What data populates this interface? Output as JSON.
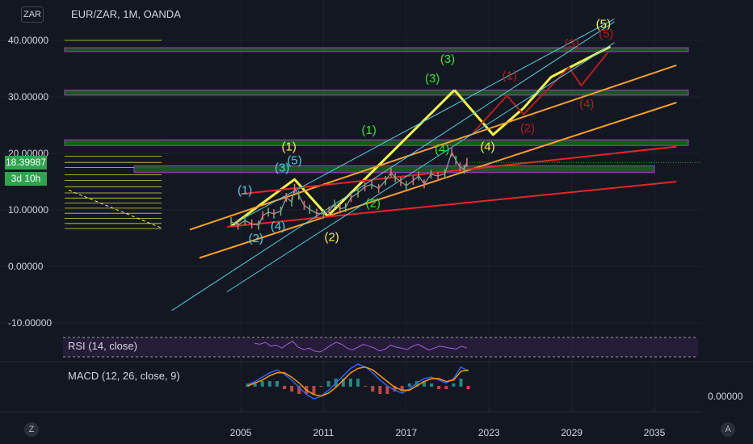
{
  "symbol": "EUR/ZAR, 1M, OANDA",
  "currency_button": "ZAR",
  "current_price": "18.39987",
  "countdown": "3d 10h",
  "rsi_label": "RSI (14, close)",
  "macd_label": "MACD (12, 26, close, 9)",
  "macd_axis_value": "0.00000",
  "corner_left": "Z",
  "corner_right": "A",
  "colors": {
    "background": "#131722",
    "yellow": "#f5f542",
    "orange": "#f59f2a",
    "red": "#e8242a",
    "cyan": "#4dd0e1",
    "green_label": "#2ee62e",
    "dark_red": "#b71c1c",
    "zone": "#1b5e20",
    "zone_border": "#b73fd8"
  },
  "chart_data": {
    "type": "line",
    "title": "EUR/ZAR, 1M, OANDA",
    "xlabel": "",
    "ylabel": "",
    "x_ticks": [
      "2005",
      "2011",
      "2017",
      "2023",
      "2029",
      "2035"
    ],
    "y_ticks": [
      "40.00000",
      "30.00000",
      "20.00000",
      "10.00000",
      "0.00000",
      "-10.00000"
    ],
    "xlim": [
      1999.5,
      2037
    ],
    "ylim": [
      -12,
      46
    ],
    "grid": true,
    "price": [
      [
        2004.3,
        7.9
      ],
      [
        2004.8,
        7.3
      ],
      [
        2005.3,
        8.1
      ],
      [
        2005.8,
        7.5
      ],
      [
        2006.3,
        7.3
      ],
      [
        2006.6,
        9.0
      ],
      [
        2007.0,
        9.6
      ],
      [
        2007.4,
        9.3
      ],
      [
        2007.9,
        9.8
      ],
      [
        2008.3,
        12.2
      ],
      [
        2008.7,
        11.4
      ],
      [
        2008.9,
        13.8
      ],
      [
        2009.2,
        12.6
      ],
      [
        2009.6,
        10.8
      ],
      [
        2010.0,
        10.1
      ],
      [
        2010.5,
        9.4
      ],
      [
        2011.0,
        9.3
      ],
      [
        2011.4,
        9.8
      ],
      [
        2011.8,
        11.0
      ],
      [
        2012.2,
        10.2
      ],
      [
        2012.6,
        10.4
      ],
      [
        2013.0,
        12.2
      ],
      [
        2013.5,
        13.0
      ],
      [
        2014.0,
        14.1
      ],
      [
        2014.5,
        14.5
      ],
      [
        2015.0,
        13.8
      ],
      [
        2015.5,
        15.2
      ],
      [
        2015.9,
        16.6
      ],
      [
        2016.2,
        15.7
      ],
      [
        2016.6,
        15.0
      ],
      [
        2017.0,
        14.3
      ],
      [
        2017.5,
        15.2
      ],
      [
        2017.9,
        16.0
      ],
      [
        2018.3,
        14.6
      ],
      [
        2018.8,
        16.3
      ],
      [
        2019.3,
        16.0
      ],
      [
        2019.8,
        16.4
      ],
      [
        2020.3,
        20.2
      ],
      [
        2020.6,
        18.8
      ],
      [
        2020.9,
        17.6
      ],
      [
        2021.2,
        17.2
      ],
      [
        2021.4,
        18.4
      ]
    ],
    "horizontal_levels": [
      {
        "name": "zone-38",
        "y": [
          38,
          38.7
        ]
      },
      {
        "name": "zone-31",
        "y": [
          30.3,
          31.2
        ]
      },
      {
        "name": "zone-22",
        "y": [
          21.4,
          22.4
        ]
      },
      {
        "name": "zone-17",
        "y": [
          16.6,
          17.8
        ]
      }
    ],
    "fib_levels": [
      40,
      31,
      22,
      19.5,
      18.4,
      17.5,
      16.2,
      15.2,
      14.1,
      13.0,
      12.1,
      11.2,
      10.3,
      9.4,
      8.5,
      7.6,
      6.7
    ],
    "trendlines": [
      {
        "name": "yellow-path-past",
        "color": "yellow",
        "points": [
          [
            2004.3,
            7.1
          ],
          [
            2008.9,
            15.4
          ],
          [
            2011.3,
            8.9
          ],
          [
            2020.5,
            31.2
          ]
        ]
      },
      {
        "name": "yellow-path-future",
        "color": "yellow",
        "points": [
          [
            2020.5,
            31.2
          ],
          [
            2023.3,
            23.3
          ],
          [
            2025.5,
            28.0
          ],
          [
            2027.5,
            33.5
          ],
          [
            2031.8,
            38.9
          ]
        ]
      },
      {
        "name": "darkred-projection",
        "color": "dark_red",
        "points": [
          [
            2021.8,
            23.5
          ],
          [
            2024.3,
            30.2
          ],
          [
            2025.5,
            26.9
          ],
          [
            2028.8,
            35.2
          ],
          [
            2029.7,
            32.0
          ],
          [
            2031.6,
            37.8
          ]
        ]
      },
      {
        "name": "orange-upper",
        "color": "orange",
        "points": [
          [
            2001.3,
            6.5
          ],
          [
            2036.6,
            35.6
          ]
        ]
      },
      {
        "name": "orange-lower",
        "color": "orange",
        "points": [
          [
            2002.0,
            1.5
          ],
          [
            2036.6,
            29.0
          ]
        ]
      },
      {
        "name": "red-upper",
        "color": "red",
        "points": [
          [
            2005.0,
            12.8
          ],
          [
            2036.6,
            21.2
          ]
        ]
      },
      {
        "name": "red-lower",
        "color": "red",
        "points": [
          [
            2004.0,
            7.0
          ],
          [
            2036.6,
            15.0
          ]
        ]
      },
      {
        "name": "cyan-upper",
        "color": "cyan",
        "points": [
          [
            2000.0,
            -7.8
          ],
          [
            2032.1,
            43.3
          ]
        ]
      },
      {
        "name": "cyan-mid",
        "color": "cyan",
        "points": [
          [
            2004.0,
            -4.5
          ],
          [
            2032.1,
            39.6
          ]
        ]
      },
      {
        "name": "cyan-lower",
        "color": "cyan",
        "points": [
          [
            2004.5,
            7.6
          ],
          [
            2032.1,
            43.8
          ]
        ]
      }
    ],
    "wave_labels": [
      {
        "text": "(5)",
        "x": 2031.3,
        "y": 42.2,
        "color": "yellow"
      },
      {
        "text": "(3)",
        "x": 2020.0,
        "y": 36.0,
        "color": "green_label"
      },
      {
        "text": "(3)",
        "x": 2018.9,
        "y": 32.6,
        "color": "green_label"
      },
      {
        "text": "(1)",
        "x": 2014.3,
        "y": 23.4,
        "color": "green_label"
      },
      {
        "text": "(4)",
        "x": 2019.6,
        "y": 20.1,
        "color": "green_label"
      },
      {
        "text": "(2)",
        "x": 2014.6,
        "y": 10.5,
        "color": "green_label"
      },
      {
        "text": "(1)",
        "x": 2008.5,
        "y": 20.5,
        "color": "yellow"
      },
      {
        "text": "(2)",
        "x": 2011.6,
        "y": 4.5,
        "color": "yellow"
      },
      {
        "text": "(4)",
        "x": 2022.9,
        "y": 20.5,
        "color": "yellow"
      },
      {
        "text": "(3)",
        "x": 2008.0,
        "y": 16.8,
        "color": "cyan"
      },
      {
        "text": "(5)",
        "x": 2008.9,
        "y": 18.1,
        "color": "cyan"
      },
      {
        "text": "(1)",
        "x": 2005.3,
        "y": 12.8,
        "color": "cyan"
      },
      {
        "text": "(2)",
        "x": 2006.1,
        "y": 4.3,
        "color": "cyan"
      },
      {
        "text": "(4)",
        "x": 2007.7,
        "y": 6.4,
        "color": "cyan"
      },
      {
        "text": "(1)",
        "x": 2024.5,
        "y": 33.1,
        "color": "dark_red"
      },
      {
        "text": "(2)",
        "x": 2025.8,
        "y": 23.8,
        "color": "dark_red"
      },
      {
        "text": "(3)",
        "x": 2029.0,
        "y": 38.7,
        "color": "dark_red"
      },
      {
        "text": "(4)",
        "x": 2030.1,
        "y": 28.1,
        "color": "dark_red"
      },
      {
        "text": "(5)",
        "x": 2031.5,
        "y": 40.5,
        "color": "dark_red"
      }
    ],
    "rsi": [
      68,
      66,
      70,
      62,
      64,
      58,
      66,
      72,
      60,
      55,
      58,
      52,
      50,
      56,
      64,
      70,
      66,
      58,
      54,
      60,
      66,
      62,
      58,
      52,
      56,
      64,
      60,
      58,
      55,
      62,
      66,
      60,
      54,
      58,
      62,
      60,
      58,
      56,
      62,
      58
    ],
    "macd_line": [
      0.1,
      0.3,
      0.6,
      0.9,
      1.1,
      0.8,
      0.4,
      -0.1,
      -0.6,
      -0.9,
      -0.7,
      -0.3,
      0.2,
      0.7,
      1.2,
      1.5,
      1.3,
      0.9,
      0.4,
      0.0,
      -0.3,
      -0.5,
      -0.2,
      0.2,
      0.5,
      0.6,
      0.4,
      0.2,
      0.5,
      1.3,
      1.0
    ],
    "signal_line": [
      0.0,
      0.2,
      0.4,
      0.7,
      0.9,
      0.9,
      0.6,
      0.2,
      -0.3,
      -0.6,
      -0.7,
      -0.5,
      -0.1,
      0.4,
      0.9,
      1.2,
      1.3,
      1.1,
      0.7,
      0.3,
      -0.1,
      -0.3,
      -0.3,
      0.0,
      0.3,
      0.5,
      0.5,
      0.3,
      0.4,
      1.0,
      1.1
    ],
    "macd_xlim": [
      2005.5,
      2021.5
    ]
  }
}
